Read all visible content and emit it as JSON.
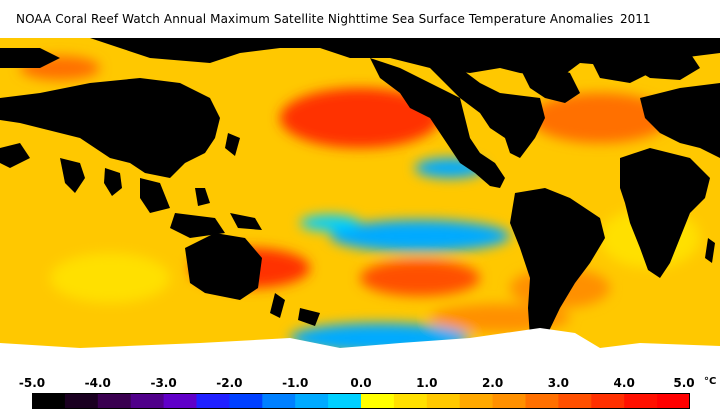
{
  "title": "NOAA Coral Reef Watch Annual Maximum Satellite Nighttime Sea Surface Temperature Anomalies",
  "year": "2011",
  "colorbar": {
    "ticks": [
      "-5.0",
      "-4.0",
      "-3.0",
      "-2.0",
      "-1.0",
      "0.0",
      "1.0",
      "2.0",
      "3.0",
      "4.0",
      "5.0"
    ],
    "unit": "°C",
    "colors": [
      "#000000",
      "#1a0020",
      "#3a0050",
      "#50008a",
      "#6000c8",
      "#2020ff",
      "#0040ff",
      "#0080ff",
      "#00aaff",
      "#00d0ff",
      "#ffff00",
      "#ffe000",
      "#ffc800",
      "#ffa800",
      "#ff9000",
      "#ff7000",
      "#ff5000",
      "#ff3000",
      "#ff1000",
      "#ff0000"
    ]
  },
  "map": {
    "land_color": "#000000",
    "ice_color": "#ffffff",
    "background_anomaly_color": "#ffc800"
  }
}
